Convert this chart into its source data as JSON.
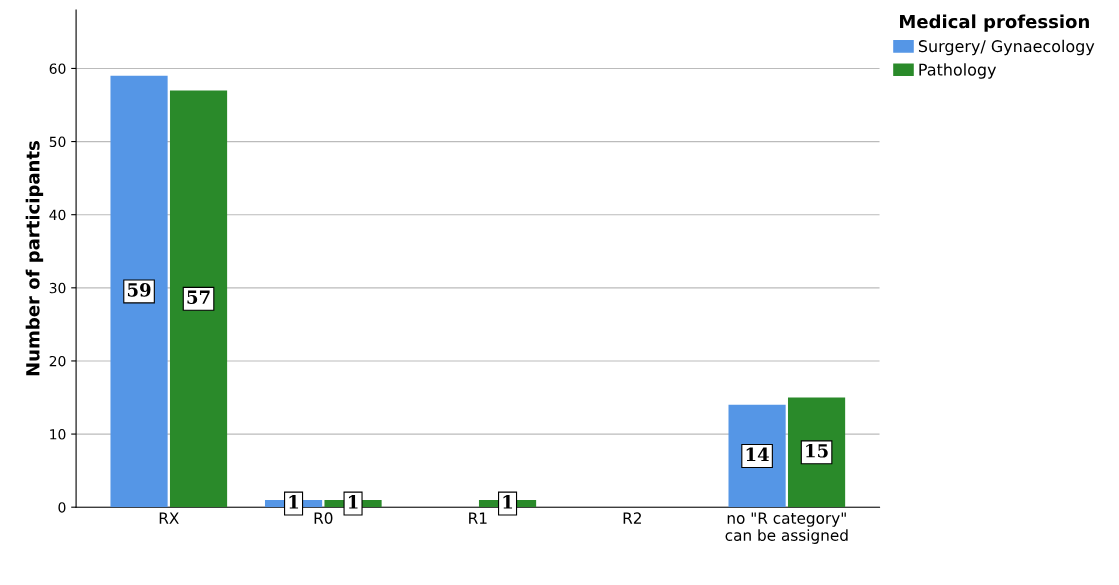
{
  "chart_data": {
    "type": "bar",
    "ylabel": "Number of participants",
    "legend_title": "Medical profession",
    "categories": [
      "RX",
      "R0",
      "R1",
      "R2",
      "no \"R category\" can be assigned"
    ],
    "series": [
      {
        "name": "Surgery/ Gynaecology",
        "color": "#5596e6",
        "values": [
          59,
          1,
          0,
          0,
          14
        ],
        "value_labels": [
          "59",
          "1",
          null,
          null,
          "14"
        ]
      },
      {
        "name": "Pathology",
        "color": "#2a8a2a",
        "values": [
          57,
          1,
          1,
          0,
          15
        ],
        "value_labels": [
          "57",
          "1",
          "1",
          null,
          "15"
        ]
      }
    ],
    "ylim": [
      0,
      68
    ],
    "yticks": [
      0,
      10,
      20,
      30,
      40,
      50,
      60
    ],
    "grid": "y",
    "legend": "top right"
  }
}
